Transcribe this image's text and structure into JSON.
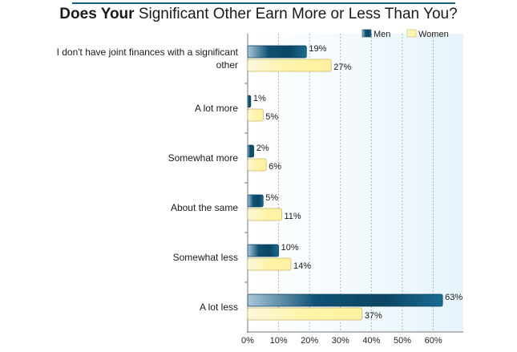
{
  "chart_data": {
    "type": "bar",
    "orientation": "horizontal",
    "title": "Does Your Significant Other Earn More or Less Than You?",
    "title_bold": "Does Your",
    "title_rest": " Significant Other Earn More or Less Than You?",
    "xlabel": "",
    "ylabel": "",
    "categories": [
      [
        "I don't have joint finances with a significant",
        "other"
      ],
      [
        "A lot more"
      ],
      [
        "Somewhat more"
      ],
      [
        "About the same"
      ],
      [
        "Somewhat less"
      ],
      [
        "A lot less"
      ]
    ],
    "series": [
      {
        "name": "Men",
        "values": [
          19,
          1,
          2,
          5,
          10,
          63
        ],
        "color": "#0f5274"
      },
      {
        "name": "Women",
        "values": [
          27,
          5,
          6,
          11,
          14,
          37
        ],
        "color": "#fff3a6"
      }
    ],
    "value_suffix": "%",
    "xticks": [
      "0%",
      "10%",
      "20%",
      "30%",
      "40%",
      "50%",
      "60%"
    ],
    "xlim": [
      0,
      70
    ],
    "grid": true,
    "legend": "top-right"
  }
}
